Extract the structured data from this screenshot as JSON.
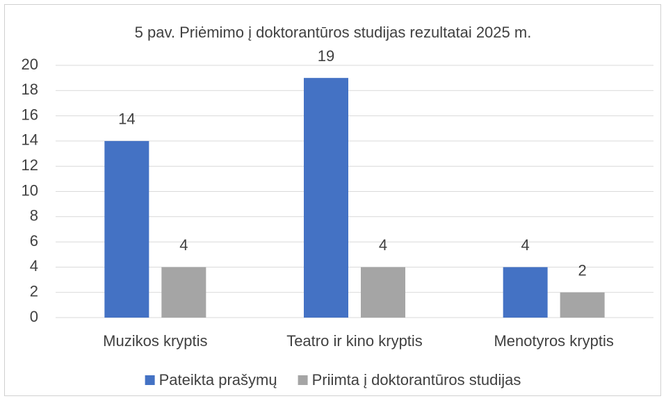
{
  "chart_data": {
    "type": "bar",
    "title": "5 pav. Priėmimo į doktorantūros studijas rezultatai 2025 m.",
    "categories": [
      "Muzikos kryptis",
      "Teatro ir kino kryptis",
      "Menotyros kryptis"
    ],
    "series": [
      {
        "name": "Pateikta prašymų",
        "color": "#4472c4",
        "values": [
          14,
          19,
          4
        ]
      },
      {
        "name": "Priimta į doktorantūros studijas",
        "color": "#a5a5a5",
        "values": [
          4,
          4,
          2
        ]
      }
    ],
    "ylim": [
      0,
      20
    ],
    "yticks": [
      0,
      2,
      4,
      6,
      8,
      10,
      12,
      14,
      16,
      18,
      20
    ],
    "grid": true,
    "legend": "bottom"
  }
}
